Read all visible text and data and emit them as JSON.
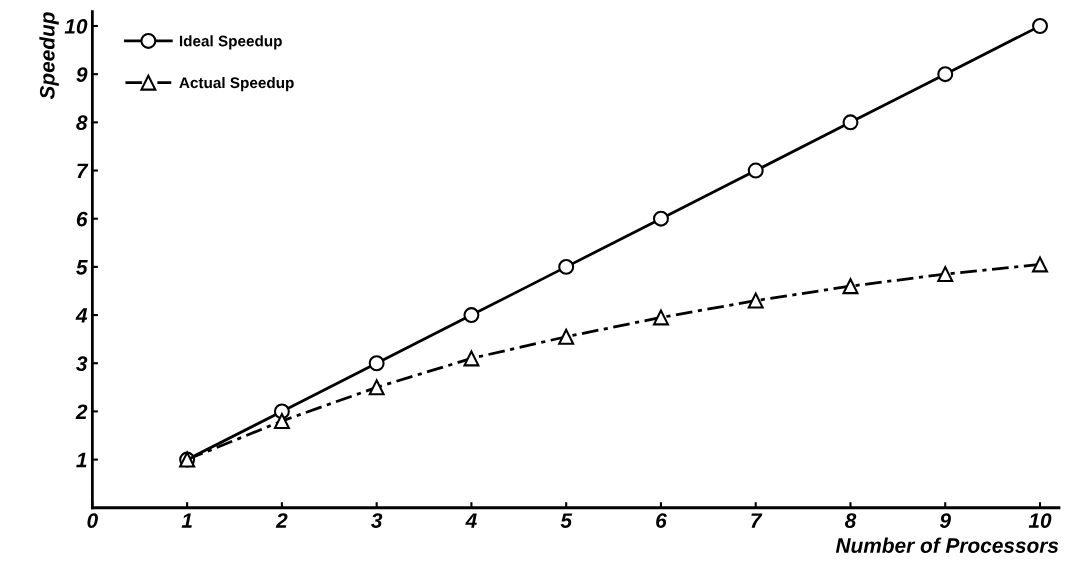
{
  "chart_data": {
    "type": "line",
    "xlabel": "Number of Processors",
    "ylabel": "Speedup",
    "x": [
      1,
      2,
      3,
      4,
      5,
      6,
      7,
      8,
      9,
      10
    ],
    "series": [
      {
        "name": "Ideal Speedup",
        "color": "#000000",
        "marker": "circle",
        "line_style": "solid",
        "values": [
          1,
          2,
          3,
          4,
          5,
          6,
          7,
          8,
          9,
          10
        ]
      },
      {
        "name": "Actual Speedup",
        "color": "#000000",
        "marker": "triangle",
        "line_style": "dashed",
        "values": [
          1,
          1.8,
          2.5,
          3.1,
          3.55,
          3.95,
          4.3,
          4.6,
          4.85,
          5.05
        ]
      }
    ],
    "xlim": [
      0,
      10.2
    ],
    "ylim": [
      0,
      10.3
    ],
    "xticks": [
      0,
      1,
      2,
      3,
      4,
      5,
      6,
      7,
      8,
      9,
      10
    ],
    "yticks": [
      1,
      2,
      3,
      4,
      5,
      6,
      7,
      8,
      9,
      10
    ],
    "legend": "top left",
    "grid": false
  }
}
